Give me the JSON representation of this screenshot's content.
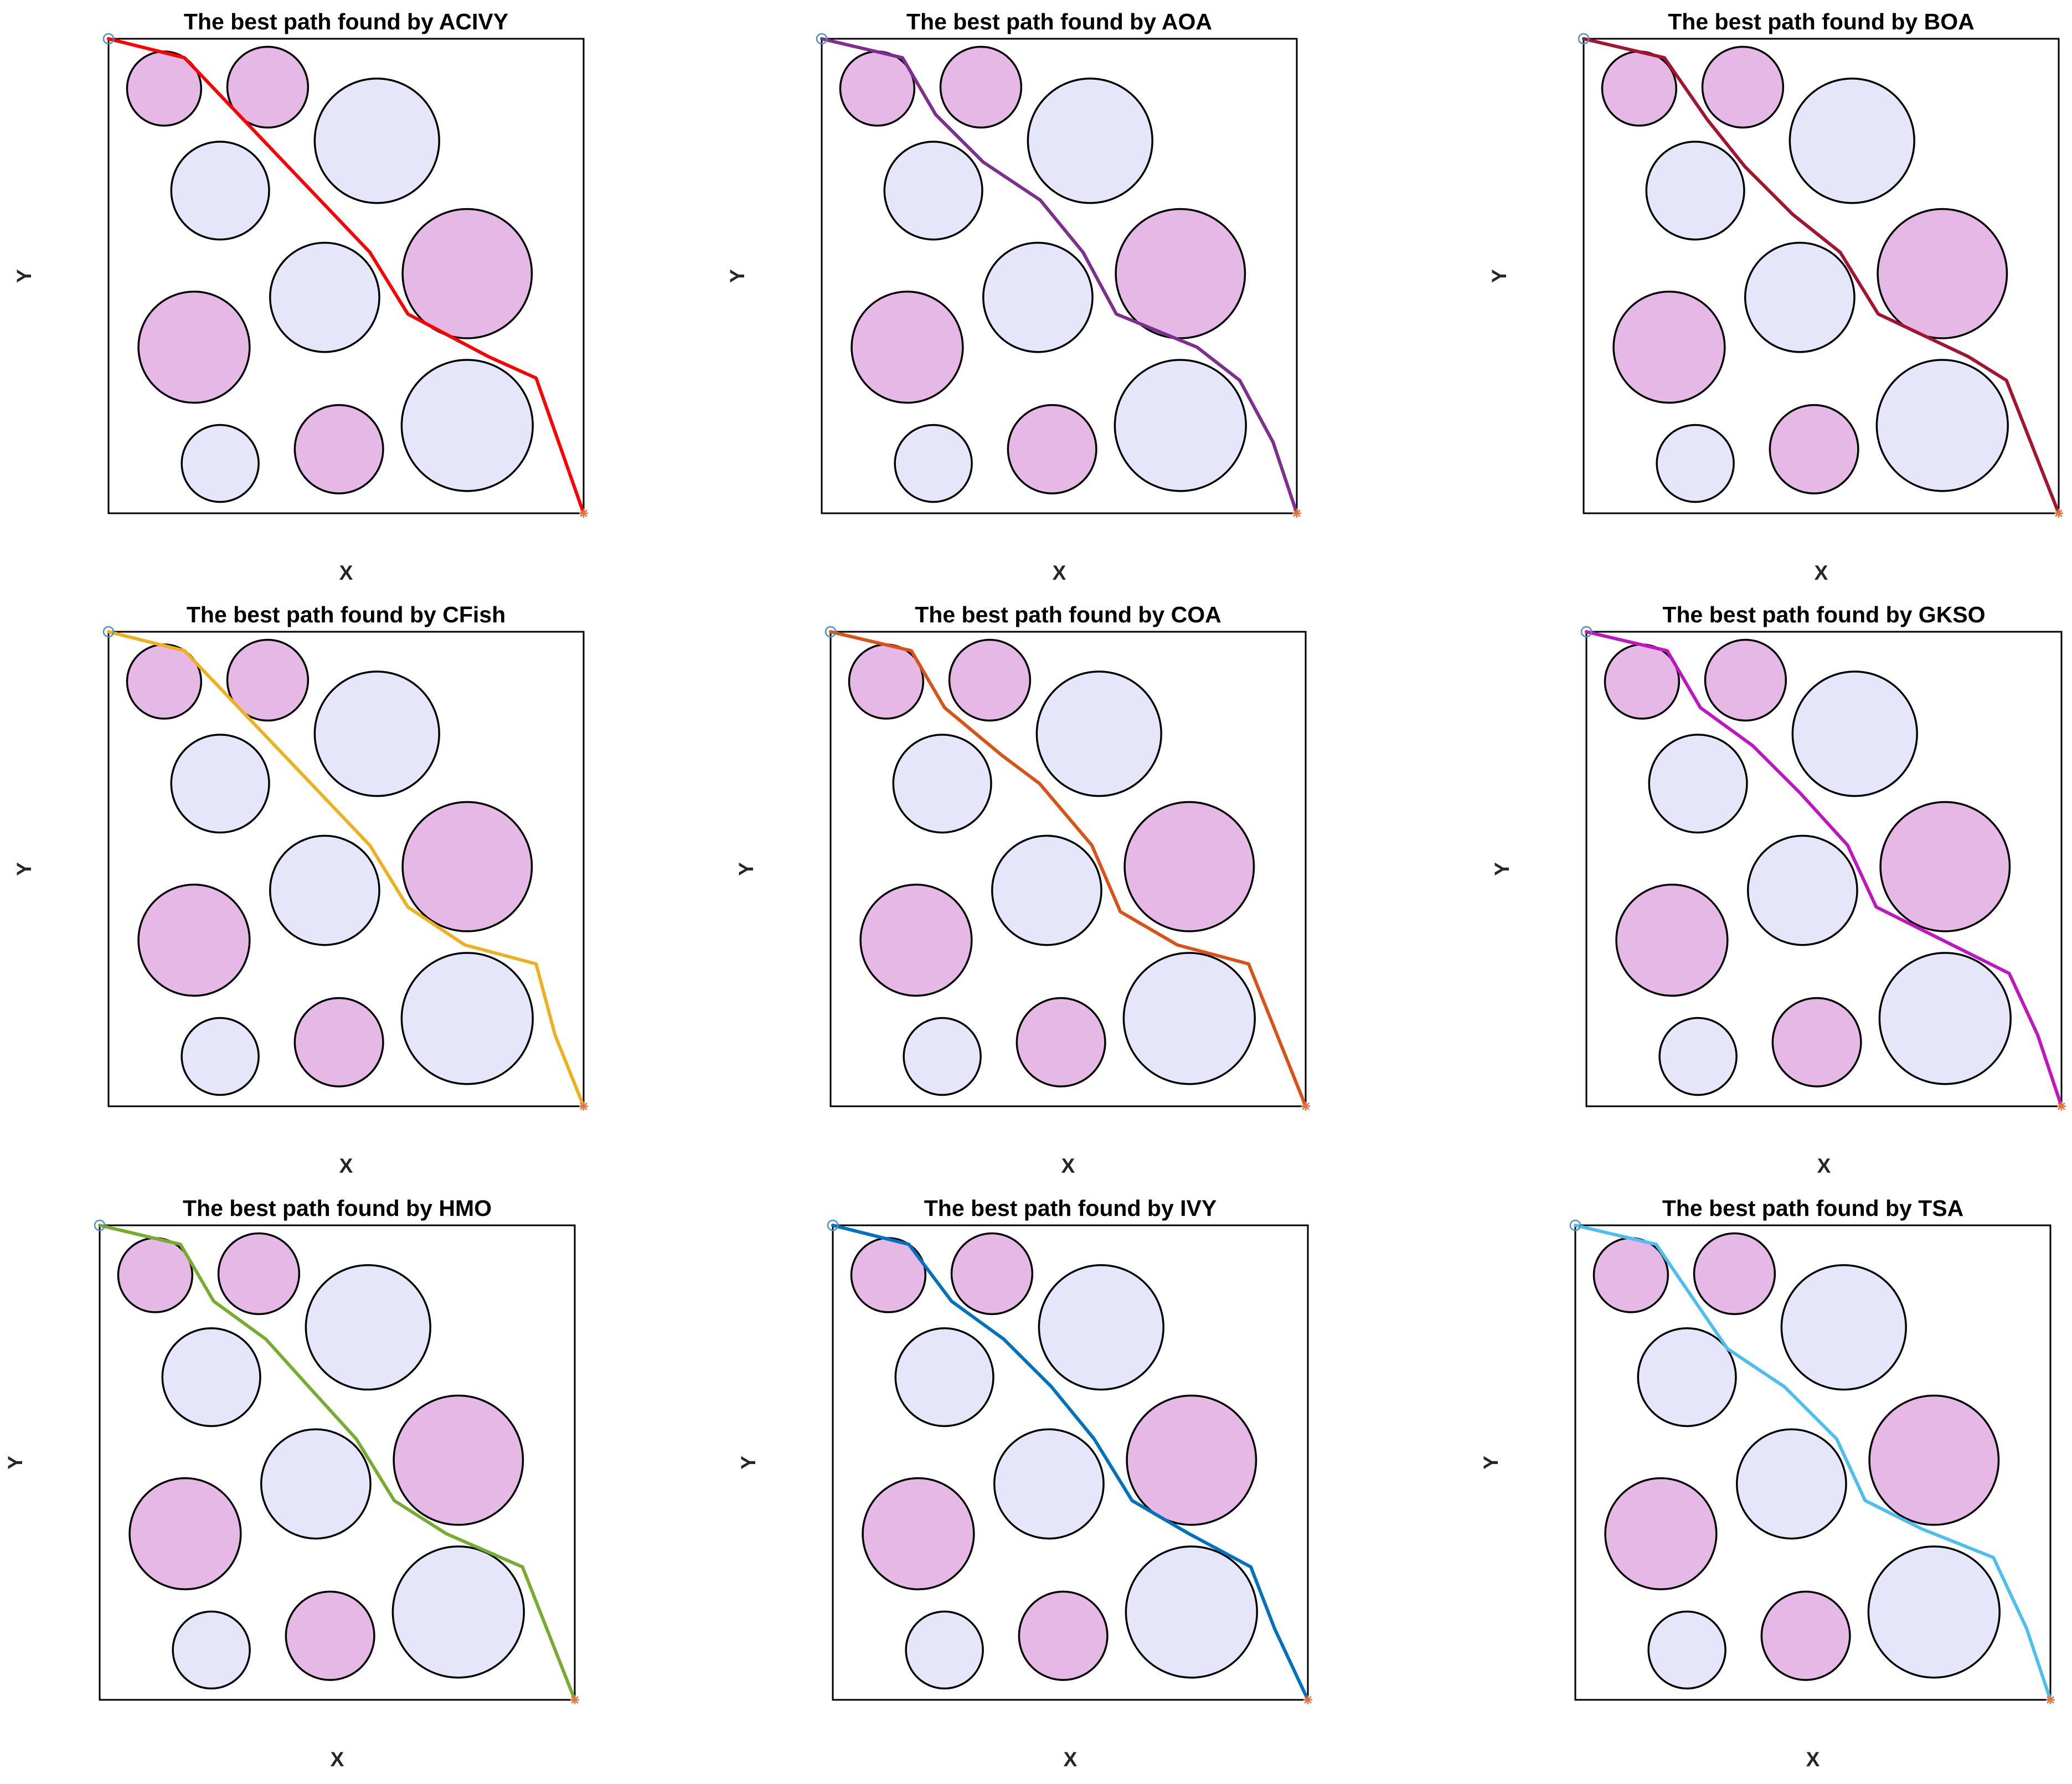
{
  "chart_data": [
    {
      "type": "line",
      "title": "The best path found by ACIVY",
      "xlabel": "X",
      "ylabel": "Y",
      "color": "#ff0000",
      "path": {
        "x": [
          0,
          1.6,
          5.5,
          6.3,
          8.0,
          9.0,
          10.0
        ],
        "y": [
          10,
          9.6,
          5.5,
          4.2,
          3.3,
          2.85,
          0
        ]
      }
    },
    {
      "type": "line",
      "title": "The best path found by AOA",
      "xlabel": "X",
      "ylabel": "Y",
      "color": "#7e2f8e",
      "path": {
        "x": [
          0,
          1.7,
          2.4,
          3.4,
          4.6,
          5.5,
          6.2,
          7.9,
          8.8,
          9.5,
          10.0
        ],
        "y": [
          10,
          9.6,
          8.4,
          7.4,
          6.6,
          5.5,
          4.2,
          3.5,
          2.8,
          1.5,
          0
        ]
      }
    },
    {
      "type": "line",
      "title": "The best path found by BOA",
      "xlabel": "X",
      "ylabel": "Y",
      "color": "#a2142f",
      "path": {
        "x": [
          0,
          1.7,
          2.6,
          3.4,
          4.4,
          5.4,
          6.2,
          8.1,
          8.9,
          10.0
        ],
        "y": [
          10,
          9.6,
          8.3,
          7.3,
          6.3,
          5.5,
          4.2,
          3.3,
          2.8,
          0
        ]
      }
    },
    {
      "type": "line",
      "title": "The best path found by CFish",
      "xlabel": "X",
      "ylabel": "Y",
      "color": "#edb120",
      "path": {
        "x": [
          0,
          1.6,
          5.5,
          6.3,
          7.5,
          9.0,
          9.4,
          10.0
        ],
        "y": [
          10,
          9.6,
          5.5,
          4.2,
          3.4,
          3.0,
          1.5,
          0
        ]
      }
    },
    {
      "type": "line",
      "title": "The best path found by COA",
      "xlabel": "X",
      "ylabel": "Y",
      "color": "#d95319",
      "path": {
        "x": [
          0,
          1.7,
          2.4,
          3.6,
          4.4,
          5.5,
          6.1,
          7.3,
          8.8,
          10.0
        ],
        "y": [
          10,
          9.6,
          8.4,
          7.4,
          6.8,
          5.5,
          4.1,
          3.4,
          3.0,
          0
        ]
      }
    },
    {
      "type": "line",
      "title": "The best path found by GKSO",
      "xlabel": "X",
      "ylabel": "Y",
      "color": "#c016c0",
      "path": {
        "x": [
          0,
          1.7,
          2.4,
          3.5,
          4.5,
          5.5,
          6.1,
          8.9,
          9.5,
          10.0
        ],
        "y": [
          10,
          9.6,
          8.4,
          7.6,
          6.6,
          5.5,
          4.2,
          2.8,
          1.5,
          0
        ]
      }
    },
    {
      "type": "line",
      "title": "The best path found by HMO",
      "xlabel": "X",
      "ylabel": "Y",
      "color": "#77ac30",
      "path": {
        "x": [
          0,
          1.7,
          2.4,
          3.5,
          4.4,
          5.4,
          6.2,
          7.3,
          8.9,
          10.0
        ],
        "y": [
          10,
          9.6,
          8.4,
          7.6,
          6.6,
          5.5,
          4.2,
          3.5,
          2.8,
          0
        ]
      }
    },
    {
      "type": "line",
      "title": "The best path found by IVY",
      "xlabel": "X",
      "ylabel": "Y",
      "color": "#0072bd",
      "path": {
        "x": [
          0,
          1.6,
          2.5,
          3.6,
          4.6,
          5.5,
          6.3,
          7.5,
          8.8,
          9.3,
          10.0
        ],
        "y": [
          10,
          9.6,
          8.4,
          7.6,
          6.6,
          5.5,
          4.2,
          3.5,
          2.8,
          1.5,
          0
        ]
      }
    },
    {
      "type": "line",
      "title": "The best path found by TSA",
      "xlabel": "X",
      "ylabel": "Y",
      "color": "#4dbeee",
      "path": {
        "x": [
          0,
          1.7,
          3.2,
          4.4,
          5.5,
          6.1,
          7.3,
          8.8,
          9.5,
          10.0
        ],
        "y": [
          10,
          9.6,
          7.4,
          6.6,
          5.5,
          4.2,
          3.6,
          3.0,
          1.5,
          0
        ]
      }
    }
  ],
  "obstacles": [
    {
      "cx": 1.17,
      "cy": 8.95,
      "r": 0.78,
      "color": "#e5b8e5"
    },
    {
      "cx": 3.35,
      "cy": 8.98,
      "r": 0.85,
      "color": "#e5b8e5"
    },
    {
      "cx": 5.65,
      "cy": 7.85,
      "r": 1.31,
      "color": "#e6e6fa"
    },
    {
      "cx": 2.35,
      "cy": 6.8,
      "r": 1.03,
      "color": "#e6e6fa"
    },
    {
      "cx": 7.55,
      "cy": 5.05,
      "r": 1.36,
      "color": "#e5b8e5"
    },
    {
      "cx": 4.55,
      "cy": 4.55,
      "r": 1.15,
      "color": "#e6e6fa"
    },
    {
      "cx": 1.8,
      "cy": 3.5,
      "r": 1.17,
      "color": "#e5b8e5"
    },
    {
      "cx": 7.55,
      "cy": 1.85,
      "r": 1.38,
      "color": "#e6e6fa"
    },
    {
      "cx": 2.35,
      "cy": 1.05,
      "r": 0.81,
      "color": "#e6e6fa"
    },
    {
      "cx": 4.85,
      "cy": 1.35,
      "r": 0.93,
      "color": "#e5b8e5"
    }
  ],
  "xlim": [
    0,
    10
  ],
  "ylim": [
    0,
    10
  ],
  "start": {
    "x": 0,
    "y": 10
  },
  "end": {
    "x": 10,
    "y": 0
  }
}
